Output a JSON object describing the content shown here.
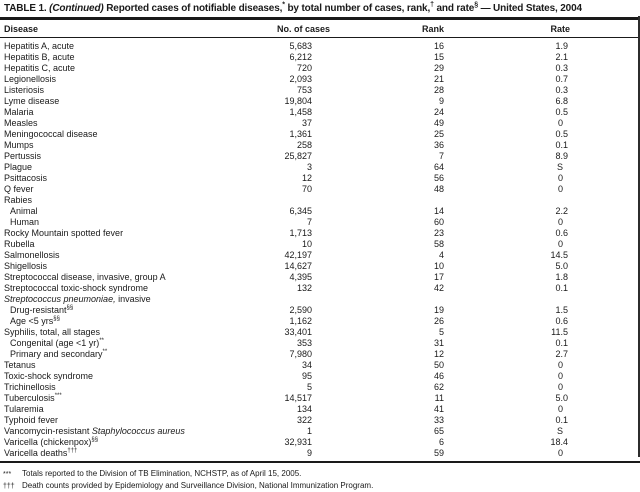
{
  "colors": {
    "ink": "#1a1a1a",
    "background": "#ffffff"
  },
  "title": {
    "prefix": "TABLE 1. ",
    "continued": "(Continued)",
    "part1": " Reported cases of notifiable diseases,",
    "sup1": "*",
    "part2": " by total number of cases, rank,",
    "sup2": "†",
    "part3": " and rate",
    "sup3": "§",
    "part4": " — United States, 2004"
  },
  "columns": [
    "Disease",
    "No. of cases",
    "Rank",
    "Rate"
  ],
  "rows": [
    {
      "pre": "Hepatitis A, acute",
      "cases": "5,683",
      "rank": "16",
      "rate": "1.9"
    },
    {
      "pre": "Hepatitis B, acute",
      "cases": "6,212",
      "rank": "15",
      "rate": "2.1"
    },
    {
      "pre": "Hepatitis C, acute",
      "cases": "720",
      "rank": "29",
      "rate": "0.3"
    },
    {
      "pre": "Legionellosis",
      "cases": "2,093",
      "rank": "21",
      "rate": "0.7"
    },
    {
      "pre": "Listeriosis",
      "cases": "753",
      "rank": "28",
      "rate": "0.3"
    },
    {
      "pre": "Lyme disease",
      "cases": "19,804",
      "rank": "9",
      "rate": "6.8"
    },
    {
      "pre": "Malaria",
      "cases": "1,458",
      "rank": "24",
      "rate": "0.5"
    },
    {
      "pre": "Measles",
      "cases": "37",
      "rank": "49",
      "rate": "0"
    },
    {
      "pre": "Meningococcal disease",
      "cases": "1,361",
      "rank": "25",
      "rate": "0.5"
    },
    {
      "pre": "Mumps",
      "cases": "258",
      "rank": "36",
      "rate": "0.1"
    },
    {
      "pre": "Pertussis",
      "cases": "25,827",
      "rank": "7",
      "rate": "8.9"
    },
    {
      "pre": "Plague",
      "cases": "3",
      "rank": "64",
      "rate": "S"
    },
    {
      "pre": "Psittacosis",
      "cases": "12",
      "rank": "56",
      "rate": "0"
    },
    {
      "pre": "Q fever",
      "cases": "70",
      "rank": "48",
      "rate": "0"
    },
    {
      "pre": "Rabies",
      "group": true,
      "cases": "",
      "rank": "",
      "rate": ""
    },
    {
      "pre": "Animal",
      "indent": true,
      "cases": "6,345",
      "rank": "14",
      "rate": "2.2"
    },
    {
      "pre": "Human",
      "indent": true,
      "cases": "7",
      "rank": "60",
      "rate": "0"
    },
    {
      "pre": "Rocky Mountain spotted fever",
      "cases": "1,713",
      "rank": "23",
      "rate": "0.6"
    },
    {
      "pre": "Rubella",
      "cases": "10",
      "rank": "58",
      "rate": "0"
    },
    {
      "pre": "Salmonellosis",
      "cases": "42,197",
      "rank": "4",
      "rate": "14.5"
    },
    {
      "pre": "Shigellosis",
      "cases": "14,627",
      "rank": "10",
      "rate": "5.0"
    },
    {
      "pre": "Streptococcal disease, invasive, group A",
      "cases": "4,395",
      "rank": "17",
      "rate": "1.8"
    },
    {
      "pre": "Streptococcal toxic-shock syndrome",
      "cases": "132",
      "rank": "42",
      "rate": "0.1"
    },
    {
      "it": "Streptococcus pneumoniae,",
      "post": " invasive",
      "group": true,
      "cases": "",
      "rank": "",
      "rate": ""
    },
    {
      "pre": "Drug-resistant",
      "sup": "§§",
      "indent": true,
      "cases": "2,590",
      "rank": "19",
      "rate": "1.5"
    },
    {
      "pre": "Age <5 yrs",
      "sup": "§§",
      "indent": true,
      "cases": "1,162",
      "rank": "26",
      "rate": "0.6"
    },
    {
      "pre": "Syphilis, total, all stages",
      "cases": "33,401",
      "rank": "5",
      "rate": "11.5"
    },
    {
      "pre": "Congenital (age <1 yr)",
      "sup": "**",
      "indent": true,
      "cases": "353",
      "rank": "31",
      "rate": "0.1"
    },
    {
      "pre": "Primary and secondary",
      "sup": "**",
      "indent": true,
      "cases": "7,980",
      "rank": "12",
      "rate": "2.7"
    },
    {
      "pre": "Tetanus",
      "cases": "34",
      "rank": "50",
      "rate": "0"
    },
    {
      "pre": "Toxic-shock syndrome",
      "cases": "95",
      "rank": "46",
      "rate": "0"
    },
    {
      "pre": "Trichinellosis",
      "cases": "5",
      "rank": "62",
      "rate": "0"
    },
    {
      "pre": "Tuberculosis",
      "sup": "***",
      "cases": "14,517",
      "rank": "11",
      "rate": "5.0"
    },
    {
      "pre": "Tularemia",
      "cases": "134",
      "rank": "41",
      "rate": "0"
    },
    {
      "pre": "Typhoid fever",
      "cases": "322",
      "rank": "33",
      "rate": "0.1"
    },
    {
      "pre": "Vancomycin-resistant ",
      "it": "Staphylococcus aureus",
      "cases": "1",
      "rank": "65",
      "rate": "S"
    },
    {
      "pre": "Varicella (chickenpox)",
      "sup": "§§",
      "cases": "32,931",
      "rank": "6",
      "rate": "18.4"
    },
    {
      "pre": "Varicella deaths",
      "sup": "†††",
      "cases": "9",
      "rank": "59",
      "rate": "0"
    }
  ],
  "footnotes": [
    {
      "marker": "***",
      "text": "Totals reported to the Division of TB Elimination, NCHSTP, as of April 15, 2005."
    },
    {
      "marker": "†††",
      "text": "Death counts provided by Epidemiology and Surveillance Division, National Immunization Program."
    }
  ]
}
